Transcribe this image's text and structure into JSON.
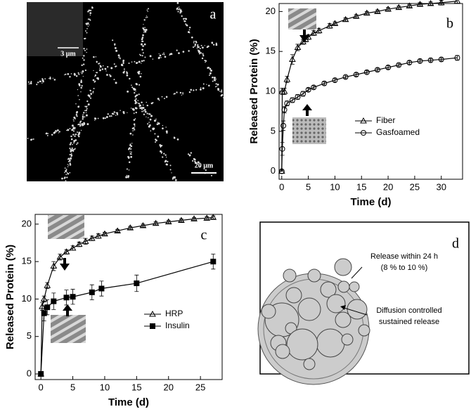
{
  "panels": {
    "a": {
      "label": "a",
      "inset_scale": "3 μm",
      "scale": "20 μm"
    },
    "d": {
      "label": "d",
      "texts": [
        "Release within 24 h",
        "(8  % to 10 %)",
        "Diffusion controlled",
        "sustained release"
      ]
    }
  },
  "chart_data": [
    {
      "type": "line",
      "label": "b",
      "x_label": "Time (d)",
      "y_label": "Released Protein (%)",
      "xlim": [
        -0.5,
        34
      ],
      "ylim": [
        -1,
        21
      ],
      "xticks": [
        0,
        5,
        10,
        15,
        20,
        25,
        30
      ],
      "yticks": [
        0,
        5,
        10,
        15,
        20
      ],
      "legend": "center-right",
      "series": [
        {
          "name": "Fiber",
          "color": "#000",
          "marker": "triangle",
          "fill": "none",
          "x": [
            0,
            0.1,
            0.5,
            1,
            2,
            3,
            4,
            4.5,
            5,
            6,
            7,
            9,
            10,
            12,
            14,
            16,
            18,
            20,
            22,
            24,
            26,
            28,
            30,
            33
          ],
          "values": [
            0,
            10,
            10,
            11.5,
            14,
            15.5,
            16.2,
            16.5,
            16.8,
            17.3,
            17.6,
            18.2,
            18.5,
            19,
            19.4,
            19.8,
            20,
            20.3,
            20.5,
            20.7,
            20.9,
            21,
            21.1,
            21.3
          ],
          "errors": [
            0,
            0.4,
            0.4,
            0.4,
            0.6,
            0.4,
            0.3,
            0.3,
            0.3,
            0.3,
            0.3,
            0.3,
            0.2,
            0.2,
            0.2,
            0.2,
            0.2,
            0.2,
            0.2,
            0.2,
            0.2,
            0.2,
            0.3,
            0.3
          ]
        },
        {
          "name": "Gasfoamed",
          "color": "#000",
          "marker": "circle",
          "fill": "none",
          "x": [
            0,
            0.1,
            0.3,
            0.5,
            1,
            2,
            3,
            4,
            5,
            6,
            8,
            10,
            12,
            14,
            16,
            18,
            20,
            22,
            24,
            26,
            28,
            30,
            33
          ],
          "values": [
            0,
            2.8,
            5.7,
            7.7,
            8.5,
            8.9,
            9.3,
            9.7,
            10.2,
            10.5,
            11,
            11.4,
            11.8,
            12.1,
            12.4,
            12.7,
            13,
            13.3,
            13.6,
            13.8,
            13.9,
            14,
            14.2
          ],
          "errors": [
            0,
            0.8,
            0.6,
            0.4,
            0.3,
            0.3,
            0.3,
            0.3,
            0.2,
            0.2,
            0.2,
            0.2,
            0.2,
            0.2,
            0.2,
            0.2,
            0.2,
            0.2,
            0.2,
            0.2,
            0.2,
            0.2,
            0.3
          ]
        }
      ]
    },
    {
      "type": "line",
      "label": "c",
      "x_label": "Time (d)",
      "y_label": "Released Protein (%)",
      "xlim": [
        -0.9,
        28.4
      ],
      "ylim": [
        -0.75,
        21.3
      ],
      "xticks": [
        0,
        5,
        10,
        15,
        20,
        25
      ],
      "yticks": [
        0,
        5,
        10,
        15,
        20
      ],
      "legend": "center",
      "series": [
        {
          "name": "HRP",
          "color": "#000",
          "marker": "triangle",
          "fill": "none",
          "x": [
            0,
            0.2,
            0.5,
            1,
            2,
            3,
            4,
            5,
            6,
            7,
            8,
            9,
            10,
            12,
            14,
            16,
            18,
            20,
            22,
            24,
            26,
            27
          ],
          "values": [
            0,
            9,
            10,
            11.8,
            14.4,
            15.6,
            16.3,
            16.8,
            17.3,
            17.7,
            18.1,
            18.4,
            18.7,
            19.1,
            19.5,
            19.8,
            20.1,
            20.3,
            20.5,
            20.7,
            20.8,
            20.9
          ],
          "errors": [
            0,
            0.5,
            0.4,
            0.4,
            0.6,
            0.4,
            0.3,
            0.3,
            0.3,
            0.4,
            0.3,
            0.3,
            0.2,
            0.2,
            0.2,
            0.2,
            0.2,
            0.2,
            0.2,
            0.2,
            0.2,
            0.2
          ]
        },
        {
          "name": "Insulin",
          "color": "#000",
          "marker": "square",
          "fill": "#000",
          "x": [
            0,
            0.5,
            1,
            2,
            4,
            5,
            8,
            9.5,
            15,
            27
          ],
          "values": [
            0,
            8.1,
            8.9,
            9.7,
            10.2,
            10.3,
            10.9,
            11.4,
            12.1,
            15
          ],
          "errors": [
            0,
            1,
            1,
            1.1,
            1,
            1,
            1,
            1,
            1.1,
            1
          ]
        }
      ]
    }
  ]
}
